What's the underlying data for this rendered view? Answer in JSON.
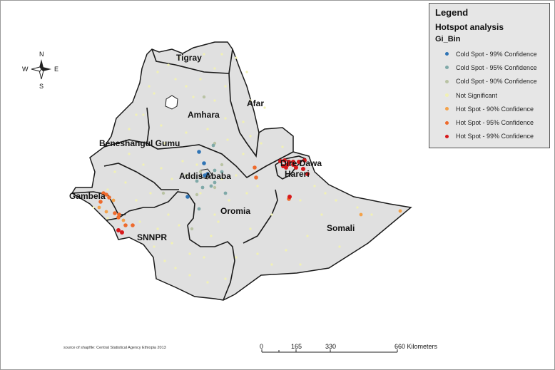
{
  "map": {
    "regions": [
      {
        "name": "Tigray"
      },
      {
        "name": "Afar"
      },
      {
        "name": "Amhara"
      },
      {
        "name": "Beneshangul Gumu"
      },
      {
        "name": "Addis Ababa"
      },
      {
        "name": "Dire Dawa"
      },
      {
        "name": "Hareri"
      },
      {
        "name": "Gambela"
      },
      {
        "name": "Oromia"
      },
      {
        "name": "SNNPR"
      },
      {
        "name": "Somali"
      }
    ],
    "colors": {
      "land": "#e0e0e0",
      "border": "#1a1a1a",
      "cold99": "#2f74b5",
      "cold95": "#7fa9a8",
      "cold90": "#b9c3a4",
      "not_sig": "#f1f1b4",
      "hot90": "#f4a24a",
      "hot95": "#ee6a2c",
      "hot99": "#d7191c"
    }
  },
  "legend": {
    "title": "Legend",
    "subtitle": "Hotspot analysis",
    "field": "Gi_Bin",
    "items": [
      {
        "label": "Cold Spot - 99% Confidence",
        "color": "#2f74b5"
      },
      {
        "label": "Cold Spot - 95% Confidence",
        "color": "#7fa9a8"
      },
      {
        "label": "Cold Spot - 90% Confidence",
        "color": "#b9c3a4"
      },
      {
        "label": "Not Significant",
        "color": "#f1f1b4"
      },
      {
        "label": "Hot Spot - 90% Confidence",
        "color": "#f4a24a"
      },
      {
        "label": "Hot Spot - 95% Confidence",
        "color": "#ee6a2c"
      },
      {
        "label": "Hot Spot - 99% Confidence",
        "color": "#d7191c"
      }
    ]
  },
  "north_arrow": {
    "n": "N",
    "s": "S",
    "e": "E",
    "w": "W"
  },
  "scale_bar": {
    "ticks": [
      "0",
      "165",
      "330",
      "660 Kilometers"
    ]
  },
  "source_note": "source of shapfile: Central Statistical Agency Ethiopia 2013"
}
